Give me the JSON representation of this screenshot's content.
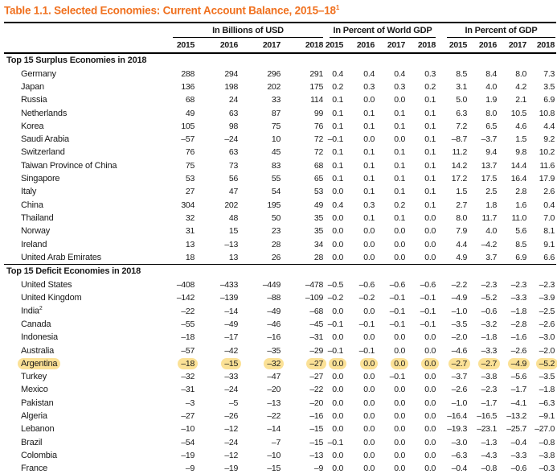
{
  "title": {
    "text": "Table 1.1. Selected Economies: Current Account Balance, 2015–18",
    "superscript": "1"
  },
  "colors": {
    "title_orange": "#F0701E",
    "highlight_yellow": "#FBE196",
    "rule_black": "#000000"
  },
  "header": {
    "groups": [
      {
        "key": "usd",
        "label": "In Billions of USD",
        "years": [
          "2015",
          "2016",
          "2017",
          "2018"
        ]
      },
      {
        "key": "world",
        "label": "In Percent of World GDP",
        "years": [
          "2015",
          "2016",
          "2017",
          "2018"
        ]
      },
      {
        "key": "gdp",
        "label": "In Percent of GDP",
        "years": [
          "2015",
          "2016",
          "2017",
          "2018"
        ]
      }
    ]
  },
  "sections": [
    {
      "header": "Top 15 Surplus Economies in 2018",
      "rows": [
        {
          "name": "Germany",
          "usd": [
            "288",
            "294",
            "296",
            "291"
          ],
          "world_gdp": [
            "0.4",
            "0.4",
            "0.4",
            "0.3"
          ],
          "gdp": [
            "8.5",
            "8.4",
            "8.0",
            "7.3"
          ]
        },
        {
          "name": "Japan",
          "usd": [
            "136",
            "198",
            "202",
            "175"
          ],
          "world_gdp": [
            "0.2",
            "0.3",
            "0.3",
            "0.2"
          ],
          "gdp": [
            "3.1",
            "4.0",
            "4.2",
            "3.5"
          ]
        },
        {
          "name": "Russia",
          "usd": [
            "68",
            "24",
            "33",
            "114"
          ],
          "world_gdp": [
            "0.1",
            "0.0",
            "0.0",
            "0.1"
          ],
          "gdp": [
            "5.0",
            "1.9",
            "2.1",
            "6.9"
          ]
        },
        {
          "name": "Netherlands",
          "usd": [
            "49",
            "63",
            "87",
            "99"
          ],
          "world_gdp": [
            "0.1",
            "0.1",
            "0.1",
            "0.1"
          ],
          "gdp": [
            "6.3",
            "8.0",
            "10.5",
            "10.8"
          ]
        },
        {
          "name": "Korea",
          "usd": [
            "105",
            "98",
            "75",
            "76"
          ],
          "world_gdp": [
            "0.1",
            "0.1",
            "0.1",
            "0.1"
          ],
          "gdp": [
            "7.2",
            "6.5",
            "4.6",
            "4.4"
          ]
        },
        {
          "name": "Saudi Arabia",
          "usd": [
            "–57",
            "–24",
            "10",
            "72"
          ],
          "world_gdp": [
            "–0.1",
            "0.0",
            "0.0",
            "0.1"
          ],
          "gdp": [
            "–8.7",
            "–3.7",
            "1.5",
            "9.2"
          ]
        },
        {
          "name": "Switzerland",
          "usd": [
            "76",
            "63",
            "45",
            "72"
          ],
          "world_gdp": [
            "0.1",
            "0.1",
            "0.1",
            "0.1"
          ],
          "gdp": [
            "11.2",
            "9.4",
            "9.8",
            "10.2"
          ]
        },
        {
          "name": "Taiwan Province of China",
          "usd": [
            "75",
            "73",
            "83",
            "68"
          ],
          "world_gdp": [
            "0.1",
            "0.1",
            "0.1",
            "0.1"
          ],
          "gdp": [
            "14.2",
            "13.7",
            "14.4",
            "11.6"
          ]
        },
        {
          "name": "Singapore",
          "usd": [
            "53",
            "56",
            "55",
            "65"
          ],
          "world_gdp": [
            "0.1",
            "0.1",
            "0.1",
            "0.1"
          ],
          "gdp": [
            "17.2",
            "17.5",
            "16.4",
            "17.9"
          ]
        },
        {
          "name": "Italy",
          "usd": [
            "27",
            "47",
            "54",
            "53"
          ],
          "world_gdp": [
            "0.0",
            "0.1",
            "0.1",
            "0.1"
          ],
          "gdp": [
            "1.5",
            "2.5",
            "2.8",
            "2.6"
          ]
        },
        {
          "name": "China",
          "usd": [
            "304",
            "202",
            "195",
            "49"
          ],
          "world_gdp": [
            "0.4",
            "0.3",
            "0.2",
            "0.1"
          ],
          "gdp": [
            "2.7",
            "1.8",
            "1.6",
            "0.4"
          ]
        },
        {
          "name": "Thailand",
          "usd": [
            "32",
            "48",
            "50",
            "35"
          ],
          "world_gdp": [
            "0.0",
            "0.1",
            "0.1",
            "0.0"
          ],
          "gdp": [
            "8.0",
            "11.7",
            "11.0",
            "7.0"
          ]
        },
        {
          "name": "Norway",
          "usd": [
            "31",
            "15",
            "23",
            "35"
          ],
          "world_gdp": [
            "0.0",
            "0.0",
            "0.0",
            "0.0"
          ],
          "gdp": [
            "7.9",
            "4.0",
            "5.6",
            "8.1"
          ]
        },
        {
          "name": "Ireland",
          "usd": [
            "13",
            "–13",
            "28",
            "34"
          ],
          "world_gdp": [
            "0.0",
            "0.0",
            "0.0",
            "0.0"
          ],
          "gdp": [
            "4.4",
            "–4.2",
            "8.5",
            "9.1"
          ]
        },
        {
          "name": "United Arab Emirates",
          "usd": [
            "18",
            "13",
            "26",
            "28"
          ],
          "world_gdp": [
            "0.0",
            "0.0",
            "0.0",
            "0.0"
          ],
          "gdp": [
            "4.9",
            "3.7",
            "6.9",
            "6.6"
          ]
        }
      ]
    },
    {
      "header": "Top 15 Deficit Economies in 2018",
      "rows": [
        {
          "name": "United States",
          "usd": [
            "–408",
            "–433",
            "–449",
            "–478"
          ],
          "world_gdp": [
            "–0.5",
            "–0.6",
            "–0.6",
            "–0.6"
          ],
          "gdp": [
            "–2.2",
            "–2.3",
            "–2.3",
            "–2.3"
          ]
        },
        {
          "name": "United Kingdom",
          "usd": [
            "–142",
            "–139",
            "–88",
            "–109"
          ],
          "world_gdp": [
            "–0.2",
            "–0.2",
            "–0.1",
            "–0.1"
          ],
          "gdp": [
            "–4.9",
            "–5.2",
            "–3.3",
            "–3.9"
          ]
        },
        {
          "name": "India",
          "superscript": "2",
          "usd": [
            "–22",
            "–14",
            "–49",
            "–68"
          ],
          "world_gdp": [
            "0.0",
            "0.0",
            "–0.1",
            "–0.1"
          ],
          "gdp": [
            "–1.0",
            "–0.6",
            "–1.8",
            "–2.5"
          ]
        },
        {
          "name": "Canada",
          "usd": [
            "–55",
            "–49",
            "–46",
            "–45"
          ],
          "world_gdp": [
            "–0.1",
            "–0.1",
            "–0.1",
            "–0.1"
          ],
          "gdp": [
            "–3.5",
            "–3.2",
            "–2.8",
            "–2.6"
          ]
        },
        {
          "name": "Indonesia",
          "usd": [
            "–18",
            "–17",
            "–16",
            "–31"
          ],
          "world_gdp": [
            "0.0",
            "0.0",
            "0.0",
            "0.0"
          ],
          "gdp": [
            "–2.0",
            "–1.8",
            "–1.6",
            "–3.0"
          ]
        },
        {
          "name": "Australia",
          "usd": [
            "–57",
            "–42",
            "–35",
            "–29"
          ],
          "world_gdp": [
            "–0.1",
            "–0.1",
            "0.0",
            "0.0"
          ],
          "gdp": [
            "–4.6",
            "–3.3",
            "–2.6",
            "–2.0"
          ]
        },
        {
          "name": "Argentina",
          "highlight": true,
          "usd": [
            "–18",
            "–15",
            "–32",
            "–27"
          ],
          "world_gdp": [
            "0.0",
            "0.0",
            "0.0",
            "0.0"
          ],
          "gdp": [
            "–2.7",
            "–2.7",
            "–4.9",
            "–5.2"
          ]
        },
        {
          "name": "Turkey",
          "usd": [
            "–32",
            "–33",
            "–47",
            "–27"
          ],
          "world_gdp": [
            "0.0",
            "0.0",
            "–0.1",
            "0.0"
          ],
          "gdp": [
            "–3.7",
            "–3.8",
            "–5.6",
            "–3.5"
          ]
        },
        {
          "name": "Mexico",
          "usd": [
            "–31",
            "–24",
            "–20",
            "–22"
          ],
          "world_gdp": [
            "0.0",
            "0.0",
            "0.0",
            "0.0"
          ],
          "gdp": [
            "–2.6",
            "–2.3",
            "–1.7",
            "–1.8"
          ]
        },
        {
          "name": "Pakistan",
          "usd": [
            "–3",
            "–5",
            "–13",
            "–20"
          ],
          "world_gdp": [
            "0.0",
            "0.0",
            "0.0",
            "0.0"
          ],
          "gdp": [
            "–1.0",
            "–1.7",
            "–4.1",
            "–6.3"
          ]
        },
        {
          "name": "Algeria",
          "usd": [
            "–27",
            "–26",
            "–22",
            "–16"
          ],
          "world_gdp": [
            "0.0",
            "0.0",
            "0.0",
            "0.0"
          ],
          "gdp": [
            "–16.4",
            "–16.5",
            "–13.2",
            "–9.1"
          ]
        },
        {
          "name": "Lebanon",
          "usd": [
            "–10",
            "–12",
            "–14",
            "–15"
          ],
          "world_gdp": [
            "0.0",
            "0.0",
            "0.0",
            "0.0"
          ],
          "gdp": [
            "–19.3",
            "–23.1",
            "–25.7",
            "–27.0"
          ]
        },
        {
          "name": "Brazil",
          "usd": [
            "–54",
            "–24",
            "–7",
            "–15"
          ],
          "world_gdp": [
            "–0.1",
            "0.0",
            "0.0",
            "0.0"
          ],
          "gdp": [
            "–3.0",
            "–1.3",
            "–0.4",
            "–0.8"
          ]
        },
        {
          "name": "Colombia",
          "usd": [
            "–19",
            "–12",
            "–10",
            "–13"
          ],
          "world_gdp": [
            "0.0",
            "0.0",
            "0.0",
            "0.0"
          ],
          "gdp": [
            "–6.3",
            "–4.3",
            "–3.3",
            "–3.8"
          ]
        },
        {
          "name": "France",
          "usd": [
            "–9",
            "–19",
            "–15",
            "–9"
          ],
          "world_gdp": [
            "0.0",
            "0.0",
            "0.0",
            "0.0"
          ],
          "gdp": [
            "–0.4",
            "–0.8",
            "–0.6",
            "–0.3"
          ]
        }
      ]
    }
  ]
}
